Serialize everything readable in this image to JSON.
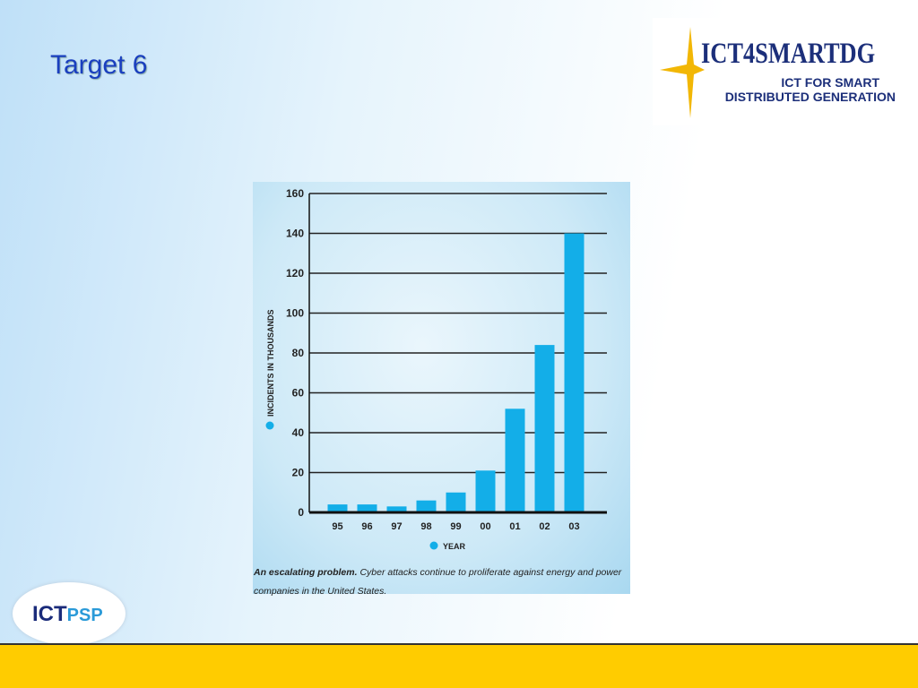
{
  "title": "Target 6",
  "logo": {
    "name": "ICT4SMARTDG",
    "line1": "ICT FOR SMART",
    "line2": "DISTRIBUTED GENERATION"
  },
  "footer_logo": {
    "part1": "ICT",
    "part2": "PSP"
  },
  "chart_data": {
    "type": "bar",
    "y_label": "INCIDENTS IN THOUSANDS",
    "x_label": "YEAR",
    "categories": [
      "95",
      "96",
      "97",
      "98",
      "99",
      "00",
      "01",
      "02",
      "03"
    ],
    "values": [
      4,
      4,
      3,
      6,
      10,
      21,
      52,
      84,
      140
    ],
    "color": "#13aee8",
    "ylim": [
      0,
      160
    ],
    "yticks": [
      0,
      20,
      40,
      60,
      80,
      100,
      120,
      140,
      160
    ],
    "grid": true,
    "caption_lead": "An escalating problem.",
    "caption": "Cyber attacks continue to proliferate against energy and power companies in the United States."
  }
}
